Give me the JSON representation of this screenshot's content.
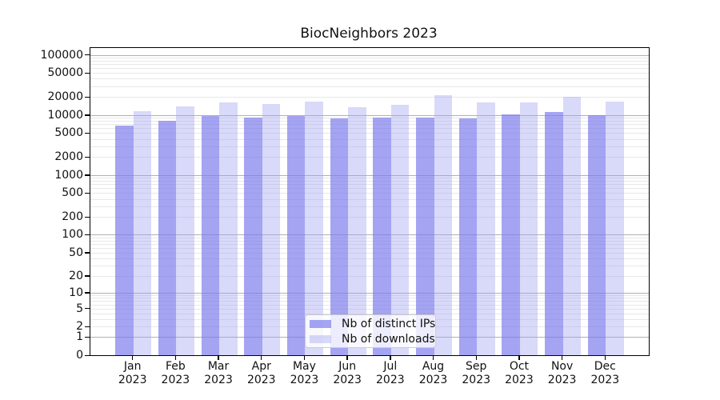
{
  "chart_data": {
    "type": "bar",
    "title": "BiocNeighbors 2023",
    "categories": [
      "Jan",
      "Feb",
      "Mar",
      "Apr",
      "May",
      "Jun",
      "Jul",
      "Aug",
      "Sep",
      "Oct",
      "Nov",
      "Dec"
    ],
    "year_label": "2023",
    "series": [
      {
        "name": "Nb of distinct IPs",
        "color": "#a4a4f3",
        "fill": "rgba(125,125,238,0.70)",
        "values": [
          6550,
          8050,
          9600,
          8900,
          9700,
          8650,
          9000,
          8900,
          8650,
          10100,
          11300,
          9900
        ]
      },
      {
        "name": "Nb of downloads",
        "color": "#dadaf9",
        "fill": "rgba(160,160,240,0.40)",
        "values": [
          11550,
          13700,
          16100,
          15200,
          16600,
          13600,
          14700,
          21000,
          16400,
          16400,
          19900,
          16500
        ]
      }
    ],
    "yscale": "log1p",
    "yticks": [
      0,
      1,
      2,
      5,
      10,
      20,
      50,
      100,
      200,
      500,
      1000,
      2000,
      5000,
      10000,
      20000,
      50000,
      100000
    ],
    "ylim": [
      0,
      130000
    ],
    "grid": true,
    "legend_position": "lower center",
    "bar_width_units": 0.42
  },
  "colors": {
    "grid_decade": "#b0b0b0",
    "grid_minor": "#e8e8e8",
    "axis": "#000000",
    "legend_border": "#cccccc",
    "legend_bg": "rgba(255,255,255,0.8)"
  }
}
